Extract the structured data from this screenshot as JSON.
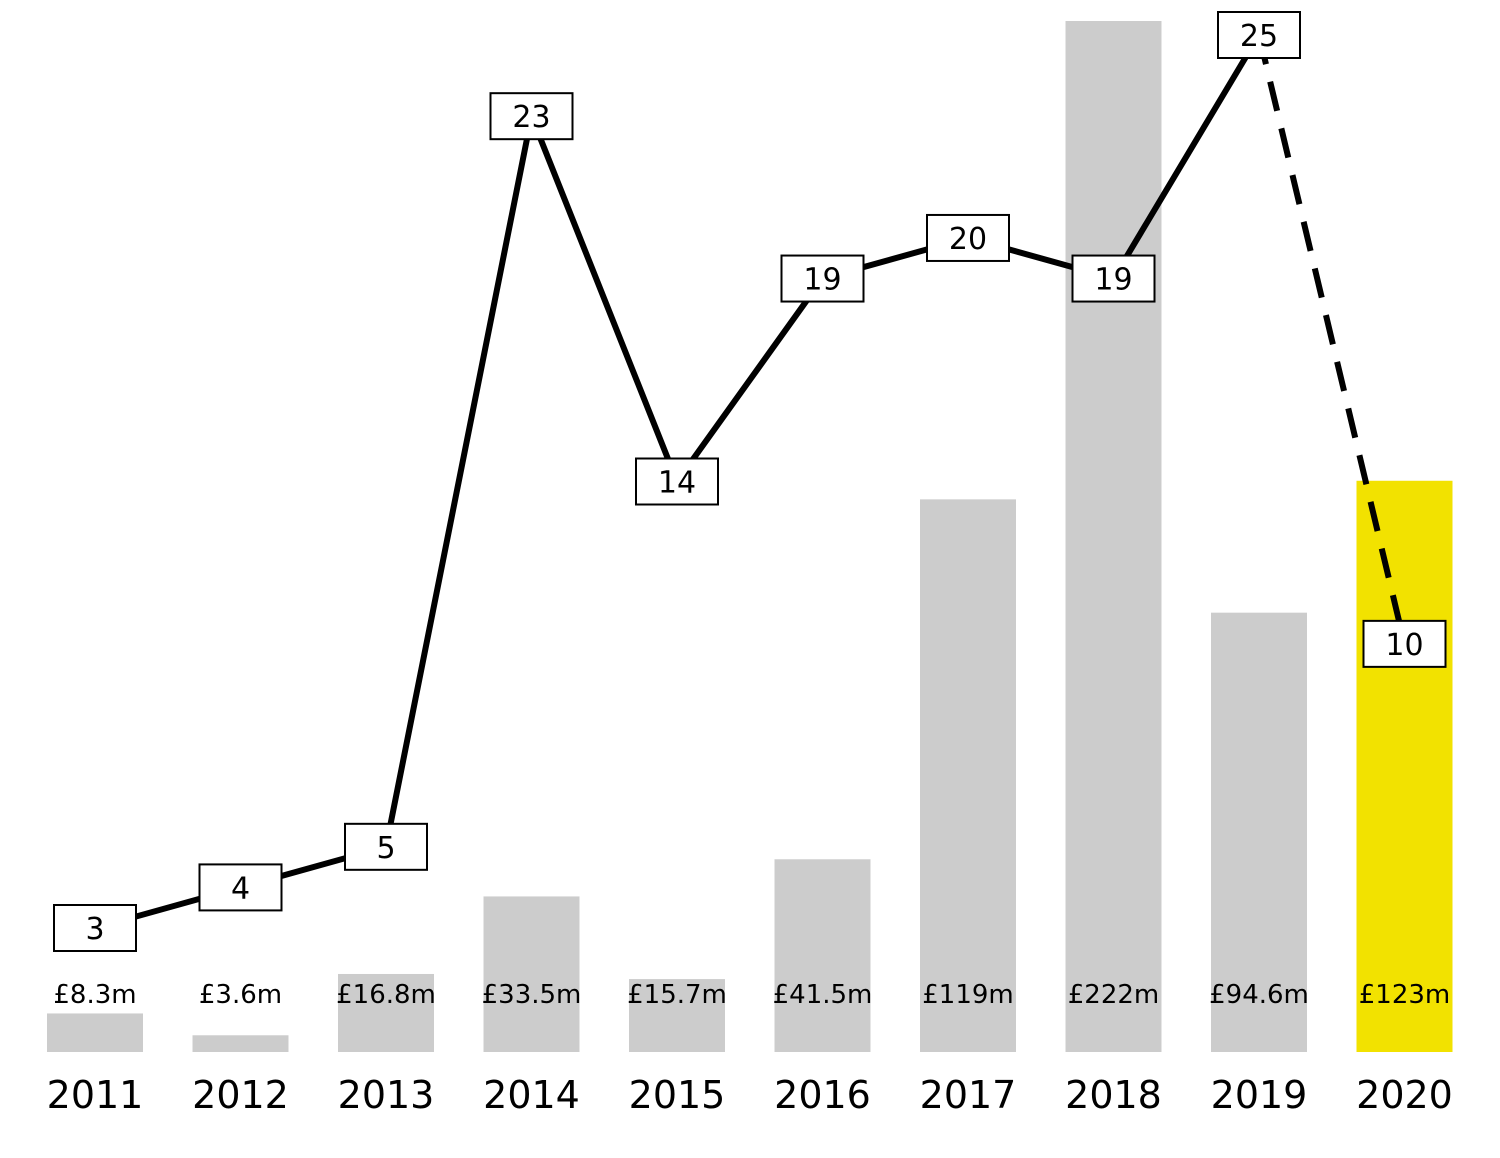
{
  "chart_data": {
    "type": "bar",
    "categories": [
      "2011",
      "2012",
      "2013",
      "2014",
      "2015",
      "2016",
      "2017",
      "2018",
      "2019",
      "2020"
    ],
    "series": [
      {
        "type": "bar",
        "values": [
          8.3,
          3.6,
          16.8,
          33.5,
          15.7,
          41.5,
          119,
          222,
          94.6,
          123
        ],
        "value_labels": [
          "£8.3m",
          "£3.6m",
          "£16.8m",
          "£33.5m",
          "£15.7m",
          "£41.5m",
          "£119m",
          "£222m",
          "£94.6m",
          "£123m"
        ]
      },
      {
        "type": "line",
        "values": [
          3,
          4,
          5,
          23,
          14,
          19,
          20,
          19,
          25,
          10
        ],
        "dashed_last_segment": true
      }
    ],
    "title": "",
    "xlabel": "",
    "ylabel": "",
    "grid": false,
    "legend": "none"
  },
  "colors": {
    "bar": "#cccccc",
    "highlight_bar": "#f2e200",
    "line": "#000000",
    "box_fill": "#ffffff",
    "box_stroke": "#000000"
  },
  "highlight_category": "2020"
}
